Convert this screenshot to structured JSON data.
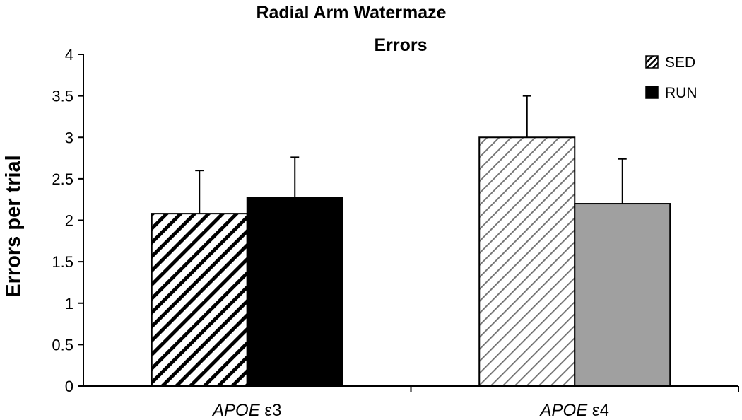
{
  "chart_data": {
    "type": "bar",
    "title": [
      "Radial Arm Watermaze",
      "Errors"
    ],
    "ylabel": "Errors per trial",
    "xlabel": "",
    "ylim": [
      0,
      4
    ],
    "yticks": [
      {
        "value": 0,
        "label": "0"
      },
      {
        "value": 0.5,
        "label": "0.5"
      },
      {
        "value": 1,
        "label": "1"
      },
      {
        "value": 1.5,
        "label": "1.5"
      },
      {
        "value": 2,
        "label": "2"
      },
      {
        "value": 2.5,
        "label": "2.5"
      },
      {
        "value": 3,
        "label": "3"
      },
      {
        "value": 3.5,
        "label": "3.5"
      },
      {
        "value": 4,
        "label": "4"
      }
    ],
    "categories": [
      {
        "italic": "APOE",
        "suffix": "ε3"
      },
      {
        "italic": "APOE",
        "suffix": "ε4"
      }
    ],
    "series": [
      {
        "name": "SED",
        "values": [
          2.08,
          3.0
        ],
        "errors": [
          0.52,
          0.5
        ]
      },
      {
        "name": "RUN",
        "values": [
          2.27,
          2.2
        ],
        "errors": [
          0.49,
          0.54
        ]
      }
    ],
    "legend_position": "top-right",
    "grid": false,
    "colors": {
      "sed_e3_stripe": "#000000",
      "sed_e4_stripe": "#777777",
      "run_e3_fill": "#000000",
      "run_e4_fill": "#a0a0a0",
      "axis": "#000000"
    }
  }
}
